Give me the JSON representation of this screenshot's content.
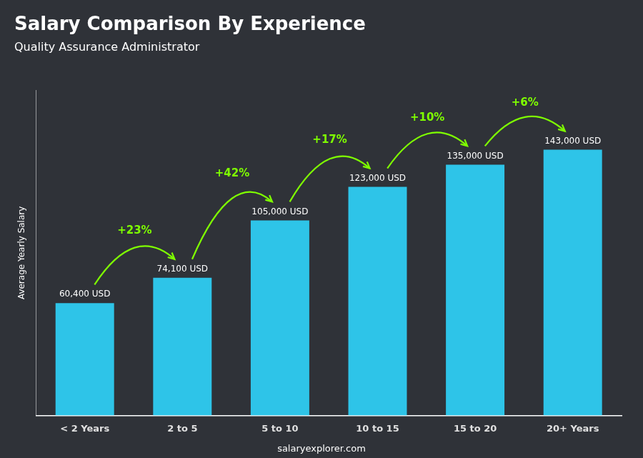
{
  "chart_data": {
    "type": "bar",
    "title": "Salary Comparison By Experience",
    "subtitle": "Quality Assurance Administrator",
    "categories": [
      "< 2 Years",
      "2 to 5",
      "5 to 10",
      "10 to 15",
      "15 to 20",
      "20+ Years"
    ],
    "values": [
      60400,
      74100,
      105000,
      123000,
      135000,
      143000
    ],
    "value_labels": [
      "60,400 USD",
      "74,100 USD",
      "105,000 USD",
      "123,000 USD",
      "135,000 USD",
      "143,000 USD"
    ],
    "data_labels": true,
    "color": "#2EC4E8",
    "ylim": [
      0,
      175000
    ],
    "tick_labels": "x",
    "grid": false,
    "ylabel": "Average Yearly Salary",
    "annotations": [
      {
        "text": "+23%",
        "from": "< 2 Years",
        "to": "2 to 5",
        "color": "#7FFF00"
      },
      {
        "text": "+42%",
        "from": "2 to 5",
        "to": "5 to 10",
        "color": "#7FFF00"
      },
      {
        "text": "+17%",
        "from": "5 to 10",
        "to": "10 to 15",
        "color": "#7FFF00"
      },
      {
        "text": "+10%",
        "from": "10 to 15",
        "to": "15 to 20",
        "color": "#7FFF00"
      },
      {
        "text": "+6%",
        "from": "15 to 20",
        "to": "20+ Years",
        "color": "#7FFF00"
      }
    ],
    "watermark": "salaryexplorer.com"
  }
}
